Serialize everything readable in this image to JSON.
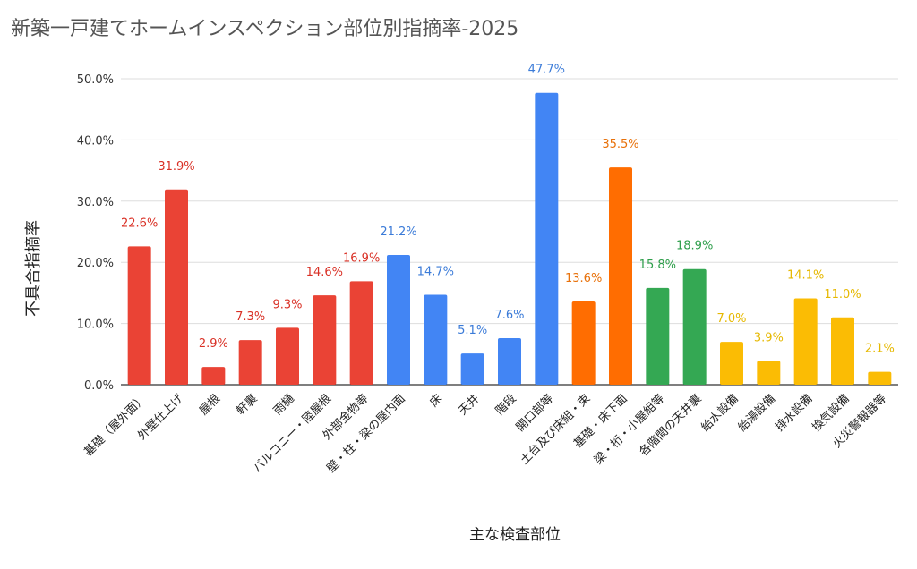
{
  "chart_data": {
    "type": "bar",
    "title": "新築一戸建てホームインスペクション部位別指摘率-2025",
    "xlabel": "主な検査部位",
    "ylabel": "不具合指摘率",
    "ylim": [
      0,
      50
    ],
    "yticks": [
      "0.0%",
      "10.0%",
      "20.0%",
      "30.0%",
      "40.0%",
      "50.0%"
    ],
    "grid": true,
    "categories": [
      "基礎（屋外面）",
      "外壁仕上げ",
      "屋根",
      "軒裏",
      "雨樋",
      "バルコニー・陸屋根",
      "外部金物等",
      "壁・柱・梁の屋内面",
      "床",
      "天井",
      "階段",
      "開口部等",
      "土台及び床組・束",
      "基礎・床下面",
      "梁・桁・小屋組等",
      "各階間の天井裏",
      "給水設備",
      "給湯設備",
      "排水設備",
      "換気設備",
      "火災警報器等"
    ],
    "values": [
      22.6,
      31.9,
      2.9,
      7.3,
      9.3,
      14.6,
      16.9,
      21.2,
      14.7,
      5.1,
      7.6,
      47.7,
      13.6,
      35.5,
      15.8,
      18.9,
      7.0,
      3.9,
      14.1,
      11.0,
      2.1
    ],
    "data_labels": [
      "22.6%",
      "31.9%",
      "2.9%",
      "7.3%",
      "9.3%",
      "14.6%",
      "16.9%",
      "21.2%",
      "14.7%",
      "5.1%",
      "7.6%",
      "47.7%",
      "13.6%",
      "35.5%",
      "15.8%",
      "18.9%",
      "7.0%",
      "3.9%",
      "14.1%",
      "11.0%",
      "2.1%"
    ],
    "bar_colors": [
      "#ea4335",
      "#ea4335",
      "#ea4335",
      "#ea4335",
      "#ea4335",
      "#ea4335",
      "#ea4335",
      "#4285f4",
      "#4285f4",
      "#4285f4",
      "#4285f4",
      "#4285f4",
      "#ff6d01",
      "#ff6d01",
      "#34a853",
      "#34a853",
      "#fbbc04",
      "#fbbc04",
      "#fbbc04",
      "#fbbc04",
      "#fbbc04"
    ],
    "label_colors": [
      "#d93025",
      "#d93025",
      "#d93025",
      "#d93025",
      "#d93025",
      "#d93025",
      "#d93025",
      "#3b7bd8",
      "#3b7bd8",
      "#3b7bd8",
      "#3b7bd8",
      "#3b7bd8",
      "#e8710a",
      "#e8710a",
      "#2e9e4b",
      "#2e9e4b",
      "#e6b800",
      "#e6b800",
      "#e6b800",
      "#e6b800",
      "#e6b800"
    ]
  }
}
